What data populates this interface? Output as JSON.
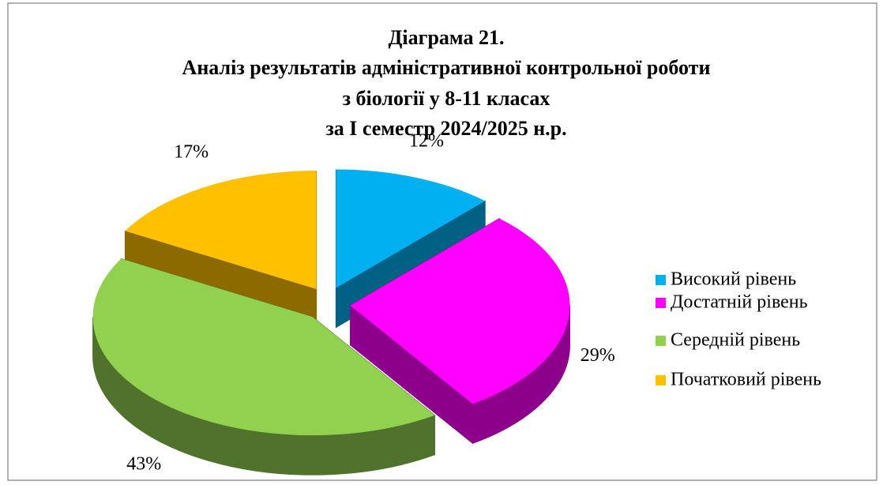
{
  "chart_data": {
    "type": "pie3d",
    "title": [
      "Діаграма 21.",
      "Аналіз результатів адміністративної контрольної роботи",
      "з біології  у 8-11 класах",
      "за І семестр 2024/2025 н.р."
    ],
    "categories": [
      "Високий рівень",
      "Достатній рівень",
      "Середній рівень",
      "Початковий рівень"
    ],
    "values": [
      12,
      29,
      43,
      17
    ],
    "value_labels": [
      "12%",
      "29%",
      "43%",
      "17%"
    ],
    "colors": [
      "#00b0f0",
      "#ff00ff",
      "#92d050",
      "#ffc000"
    ],
    "legend": "right"
  }
}
